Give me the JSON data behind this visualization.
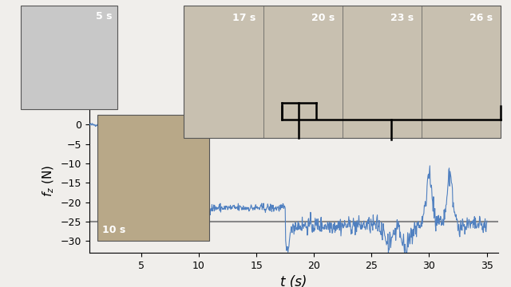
{
  "title": "",
  "xlabel": "t (s)",
  "ylabel": "$f_z$ (N)",
  "xlim": [
    0.5,
    36
  ],
  "ylim": [
    -33,
    4
  ],
  "xticks": [
    5,
    10,
    15,
    20,
    25,
    30,
    35
  ],
  "yticks": [
    0,
    -5,
    -10,
    -15,
    -20,
    -25,
    -30
  ],
  "line_color": "#5080C0",
  "hline_y": -25,
  "hline_color": "#888888",
  "hline_lw": 1.5,
  "bg_color": "#f0eeeb",
  "line_lw": 0.8,
  "phase1_level": -0.05,
  "phase2_level": -21.5,
  "phase3_level": -26.0,
  "image_5s_label": "5 s",
  "image_10s_label": "10 s",
  "top_image_labels": [
    "17 s",
    "20 s",
    "23 s",
    "26 s"
  ]
}
